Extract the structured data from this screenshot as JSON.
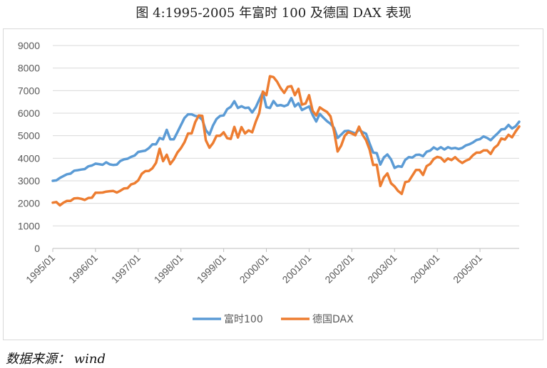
{
  "caption": "图 4:1995-2005 年富时 100 及德国 DAX 表现",
  "source": "数据来源： wind",
  "chart_data": {
    "type": "line",
    "title": "图 4:1995-2005 年富时 100 及德国 DAX 表现",
    "xlabel": "",
    "ylabel": "",
    "ylim": [
      0,
      9000
    ],
    "yticks": [
      0,
      1000,
      2000,
      3000,
      4000,
      5000,
      6000,
      7000,
      8000,
      9000
    ],
    "grid": true,
    "legend": "bottom-center",
    "x_tick_labels": [
      "1995/01",
      "1996/01",
      "1997/01",
      "1998/01",
      "1999/01",
      "2000/01",
      "2001/01",
      "2002/01",
      "2003/01",
      "2004/01",
      "2005/01"
    ],
    "x_start": 1995.0,
    "x_end": 2005.917,
    "series": [
      {
        "name": "富时100",
        "color": "#5B9BD5",
        "points": [
          [
            1995.0,
            3000
          ],
          [
            1995.083,
            3020
          ],
          [
            1995.167,
            3130
          ],
          [
            1995.25,
            3210
          ],
          [
            1995.333,
            3290
          ],
          [
            1995.417,
            3320
          ],
          [
            1995.5,
            3450
          ],
          [
            1995.583,
            3470
          ],
          [
            1995.667,
            3500
          ],
          [
            1995.75,
            3520
          ],
          [
            1995.833,
            3640
          ],
          [
            1995.917,
            3680
          ],
          [
            1996.0,
            3760
          ],
          [
            1996.083,
            3740
          ],
          [
            1996.167,
            3710
          ],
          [
            1996.25,
            3820
          ],
          [
            1996.333,
            3730
          ],
          [
            1996.417,
            3700
          ],
          [
            1996.5,
            3720
          ],
          [
            1996.583,
            3880
          ],
          [
            1996.667,
            3950
          ],
          [
            1996.75,
            3980
          ],
          [
            1996.833,
            4060
          ],
          [
            1996.917,
            4120
          ],
          [
            1997.0,
            4280
          ],
          [
            1997.083,
            4310
          ],
          [
            1997.167,
            4340
          ],
          [
            1997.25,
            4450
          ],
          [
            1997.333,
            4620
          ],
          [
            1997.417,
            4620
          ],
          [
            1997.5,
            4900
          ],
          [
            1997.583,
            4840
          ],
          [
            1997.667,
            5260
          ],
          [
            1997.75,
            4840
          ],
          [
            1997.833,
            4840
          ],
          [
            1997.917,
            5150
          ],
          [
            1998.0,
            5470
          ],
          [
            1998.083,
            5790
          ],
          [
            1998.167,
            5950
          ],
          [
            1998.25,
            5950
          ],
          [
            1998.333,
            5880
          ],
          [
            1998.417,
            5850
          ],
          [
            1998.5,
            5700
          ],
          [
            1998.583,
            5250
          ],
          [
            1998.667,
            5050
          ],
          [
            1998.75,
            5450
          ],
          [
            1998.833,
            5740
          ],
          [
            1998.917,
            5880
          ],
          [
            1999.0,
            5900
          ],
          [
            1999.083,
            6180
          ],
          [
            1999.167,
            6280
          ],
          [
            1999.25,
            6530
          ],
          [
            1999.333,
            6230
          ],
          [
            1999.417,
            6310
          ],
          [
            1999.5,
            6230
          ],
          [
            1999.583,
            6250
          ],
          [
            1999.667,
            6030
          ],
          [
            1999.75,
            6260
          ],
          [
            1999.833,
            6600
          ],
          [
            1999.917,
            6930
          ],
          [
            2000.0,
            6270
          ],
          [
            2000.083,
            6230
          ],
          [
            2000.167,
            6540
          ],
          [
            2000.25,
            6330
          ],
          [
            2000.333,
            6360
          ],
          [
            2000.417,
            6310
          ],
          [
            2000.5,
            6370
          ],
          [
            2000.583,
            6670
          ],
          [
            2000.667,
            6300
          ],
          [
            2000.75,
            6440
          ],
          [
            2000.833,
            6140
          ],
          [
            2000.917,
            6220
          ],
          [
            2001.0,
            6300
          ],
          [
            2001.083,
            5920
          ],
          [
            2001.167,
            5630
          ],
          [
            2001.25,
            5970
          ],
          [
            2001.333,
            5800
          ],
          [
            2001.417,
            5650
          ],
          [
            2001.5,
            5530
          ],
          [
            2001.583,
            5350
          ],
          [
            2001.667,
            4900
          ],
          [
            2001.75,
            5050
          ],
          [
            2001.833,
            5200
          ],
          [
            2001.917,
            5220
          ],
          [
            2002.0,
            5160
          ],
          [
            2002.083,
            5100
          ],
          [
            2002.167,
            5270
          ],
          [
            2002.25,
            5160
          ],
          [
            2002.333,
            5090
          ],
          [
            2002.417,
            4650
          ],
          [
            2002.5,
            4250
          ],
          [
            2002.583,
            4230
          ],
          [
            2002.667,
            3720
          ],
          [
            2002.75,
            4040
          ],
          [
            2002.833,
            4170
          ],
          [
            2002.917,
            3950
          ],
          [
            2003.0,
            3570
          ],
          [
            2003.083,
            3650
          ],
          [
            2003.167,
            3620
          ],
          [
            2003.25,
            3930
          ],
          [
            2003.333,
            4050
          ],
          [
            2003.417,
            4030
          ],
          [
            2003.5,
            4150
          ],
          [
            2003.583,
            4160
          ],
          [
            2003.667,
            4090
          ],
          [
            2003.75,
            4290
          ],
          [
            2003.833,
            4340
          ],
          [
            2003.917,
            4480
          ],
          [
            2004.0,
            4390
          ],
          [
            2004.083,
            4490
          ],
          [
            2004.167,
            4390
          ],
          [
            2004.25,
            4490
          ],
          [
            2004.333,
            4430
          ],
          [
            2004.417,
            4460
          ],
          [
            2004.5,
            4410
          ],
          [
            2004.583,
            4460
          ],
          [
            2004.667,
            4570
          ],
          [
            2004.75,
            4620
          ],
          [
            2004.833,
            4700
          ],
          [
            2004.917,
            4810
          ],
          [
            2005.0,
            4850
          ],
          [
            2005.083,
            4970
          ],
          [
            2005.167,
            4900
          ],
          [
            2005.25,
            4800
          ],
          [
            2005.333,
            4960
          ],
          [
            2005.417,
            5110
          ],
          [
            2005.5,
            5280
          ],
          [
            2005.583,
            5300
          ],
          [
            2005.667,
            5480
          ],
          [
            2005.75,
            5320
          ],
          [
            2005.833,
            5420
          ],
          [
            2005.917,
            5620
          ]
        ]
      },
      {
        "name": "德国DAX",
        "color": "#ED7D31",
        "points": [
          [
            1995.0,
            2030
          ],
          [
            1995.083,
            2060
          ],
          [
            1995.167,
            1910
          ],
          [
            1995.25,
            2030
          ],
          [
            1995.333,
            2110
          ],
          [
            1995.417,
            2110
          ],
          [
            1995.5,
            2220
          ],
          [
            1995.583,
            2230
          ],
          [
            1995.667,
            2200
          ],
          [
            1995.75,
            2150
          ],
          [
            1995.833,
            2240
          ],
          [
            1995.917,
            2250
          ],
          [
            1996.0,
            2470
          ],
          [
            1996.083,
            2470
          ],
          [
            1996.167,
            2480
          ],
          [
            1996.25,
            2520
          ],
          [
            1996.333,
            2540
          ],
          [
            1996.417,
            2550
          ],
          [
            1996.5,
            2480
          ],
          [
            1996.583,
            2560
          ],
          [
            1996.667,
            2660
          ],
          [
            1996.75,
            2670
          ],
          [
            1996.833,
            2840
          ],
          [
            1996.917,
            2890
          ],
          [
            1997.0,
            3020
          ],
          [
            1997.083,
            3310
          ],
          [
            1997.167,
            3430
          ],
          [
            1997.25,
            3440
          ],
          [
            1997.333,
            3560
          ],
          [
            1997.417,
            3800
          ],
          [
            1997.5,
            4420
          ],
          [
            1997.583,
            3870
          ],
          [
            1997.667,
            4160
          ],
          [
            1997.75,
            3740
          ],
          [
            1997.833,
            3950
          ],
          [
            1997.917,
            4250
          ],
          [
            1998.0,
            4450
          ],
          [
            1998.083,
            4710
          ],
          [
            1998.167,
            5100
          ],
          [
            1998.25,
            5100
          ],
          [
            1998.333,
            5600
          ],
          [
            1998.417,
            5900
          ],
          [
            1998.5,
            5880
          ],
          [
            1998.583,
            4800
          ],
          [
            1998.667,
            4470
          ],
          [
            1998.75,
            4670
          ],
          [
            1998.833,
            5000
          ],
          [
            1998.917,
            5000
          ],
          [
            1999.0,
            5150
          ],
          [
            1999.083,
            4890
          ],
          [
            1999.167,
            4860
          ],
          [
            1999.25,
            5390
          ],
          [
            1999.333,
            4920
          ],
          [
            1999.417,
            5380
          ],
          [
            1999.5,
            5100
          ],
          [
            1999.583,
            5240
          ],
          [
            1999.667,
            5150
          ],
          [
            1999.75,
            5620
          ],
          [
            1999.833,
            6000
          ],
          [
            1999.917,
            6960
          ],
          [
            2000.0,
            6800
          ],
          [
            2000.083,
            7640
          ],
          [
            2000.167,
            7600
          ],
          [
            2000.25,
            7400
          ],
          [
            2000.333,
            7110
          ],
          [
            2000.417,
            6900
          ],
          [
            2000.5,
            7170
          ],
          [
            2000.583,
            7200
          ],
          [
            2000.667,
            6800
          ],
          [
            2000.75,
            7080
          ],
          [
            2000.833,
            6380
          ],
          [
            2000.917,
            6430
          ],
          [
            2001.0,
            6800
          ],
          [
            2001.083,
            6100
          ],
          [
            2001.167,
            5900
          ],
          [
            2001.25,
            6260
          ],
          [
            2001.333,
            6150
          ],
          [
            2001.417,
            6060
          ],
          [
            2001.5,
            5860
          ],
          [
            2001.583,
            5200
          ],
          [
            2001.667,
            4300
          ],
          [
            2001.75,
            4560
          ],
          [
            2001.833,
            4990
          ],
          [
            2001.917,
            5160
          ],
          [
            2002.0,
            5100
          ],
          [
            2002.083,
            5020
          ],
          [
            2002.167,
            5400
          ],
          [
            2002.25,
            5050
          ],
          [
            2002.333,
            4800
          ],
          [
            2002.417,
            4380
          ],
          [
            2002.5,
            3700
          ],
          [
            2002.583,
            3710
          ],
          [
            2002.667,
            2770
          ],
          [
            2002.75,
            3150
          ],
          [
            2002.833,
            3330
          ],
          [
            2002.917,
            2890
          ],
          [
            2003.0,
            2750
          ],
          [
            2003.083,
            2550
          ],
          [
            2003.167,
            2420
          ],
          [
            2003.25,
            2940
          ],
          [
            2003.333,
            2980
          ],
          [
            2003.417,
            3230
          ],
          [
            2003.5,
            3480
          ],
          [
            2003.583,
            3480
          ],
          [
            2003.667,
            3260
          ],
          [
            2003.75,
            3650
          ],
          [
            2003.833,
            3750
          ],
          [
            2003.917,
            3970
          ],
          [
            2004.0,
            4060
          ],
          [
            2004.083,
            4020
          ],
          [
            2004.167,
            3850
          ],
          [
            2004.25,
            3990
          ],
          [
            2004.333,
            3920
          ],
          [
            2004.417,
            4050
          ],
          [
            2004.5,
            3900
          ],
          [
            2004.583,
            3790
          ],
          [
            2004.667,
            3890
          ],
          [
            2004.75,
            3960
          ],
          [
            2004.833,
            4130
          ],
          [
            2004.917,
            4250
          ],
          [
            2005.0,
            4250
          ],
          [
            2005.083,
            4350
          ],
          [
            2005.167,
            4350
          ],
          [
            2005.25,
            4190
          ],
          [
            2005.333,
            4460
          ],
          [
            2005.417,
            4590
          ],
          [
            2005.5,
            4880
          ],
          [
            2005.583,
            4830
          ],
          [
            2005.667,
            5040
          ],
          [
            2005.75,
            4930
          ],
          [
            2005.833,
            5190
          ],
          [
            2005.917,
            5410
          ]
        ]
      }
    ]
  }
}
